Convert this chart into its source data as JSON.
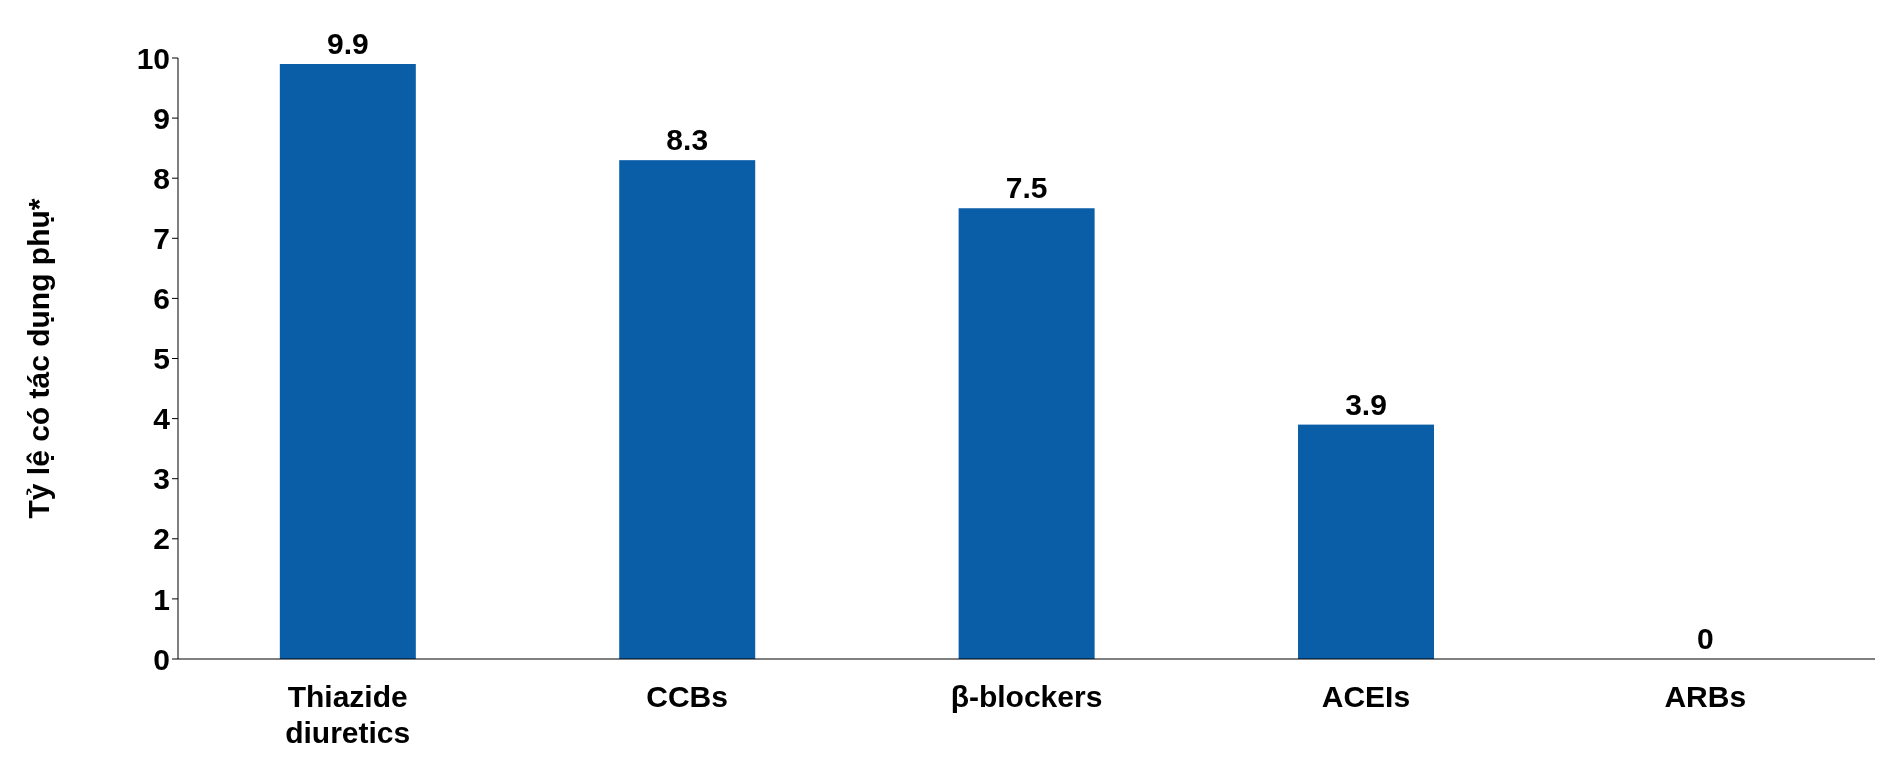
{
  "chart_data": {
    "type": "bar",
    "ylabel": "Tỷ lệ có tác dụng phụ*",
    "categories": [
      "Thiazide diuretics",
      "CCBs",
      "β-blockers",
      "ACEIs",
      "ARBs"
    ],
    "values": [
      9.9,
      8.3,
      7.5,
      3.9,
      0
    ],
    "color": "#0a5ea8",
    "ylim": [
      0,
      10
    ],
    "yticks": [
      0,
      1,
      2,
      3,
      4,
      5,
      6,
      7,
      8,
      9,
      10
    ],
    "grid": false,
    "legend": false,
    "data_labels": true
  }
}
